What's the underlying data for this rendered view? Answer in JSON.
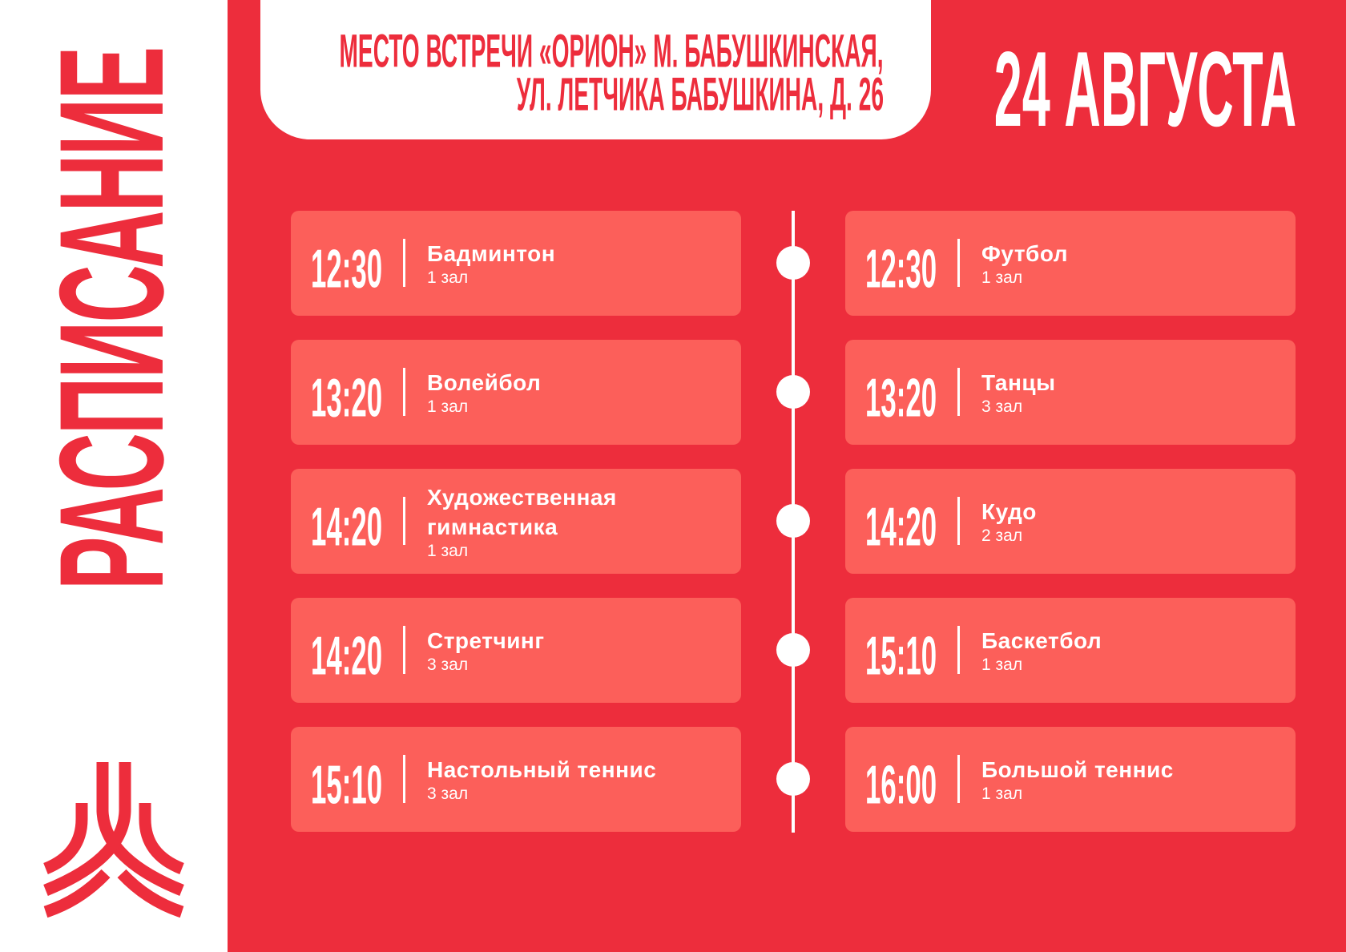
{
  "title": "РАСПИСАНИЕ",
  "logo": {
    "name": "red-stylized-m-arcs-logo"
  },
  "address": {
    "line1": "МЕСТО ВСТРЕЧИ «ОРИОН» М. БАБУШКИНСКАЯ,",
    "line2": "УЛ. ЛЕТЧИКА БАБУШКИНА, Д. 26"
  },
  "date": "24 АВГУСТА",
  "colors": {
    "brand_red": "#ED2D3C",
    "card": "#FC5F5A",
    "white": "#FFFFFF"
  },
  "schedule": {
    "left": [
      {
        "time": "12:30",
        "name": "Бадминтон",
        "room": "1 зал"
      },
      {
        "time": "13:20",
        "name": "Волейбол",
        "room": "1 зал"
      },
      {
        "time": "14:20",
        "name": "Художественная гимнастика",
        "room": "1 зал"
      },
      {
        "time": "14:20",
        "name": "Стретчинг",
        "room": "3 зал"
      },
      {
        "time": "15:10",
        "name": "Настольный теннис",
        "room": "3 зал"
      }
    ],
    "right": [
      {
        "time": "12:30",
        "name": "Футбол",
        "room": "1 зал"
      },
      {
        "time": "13:20",
        "name": "Танцы",
        "room": "3 зал"
      },
      {
        "time": "14:20",
        "name": "Кудо",
        "room": "2 зал"
      },
      {
        "time": "15:10",
        "name": "Баскетбол",
        "room": "1 зал"
      },
      {
        "time": "16:00",
        "name": "Большой теннис",
        "room": "1 зал"
      }
    ]
  }
}
